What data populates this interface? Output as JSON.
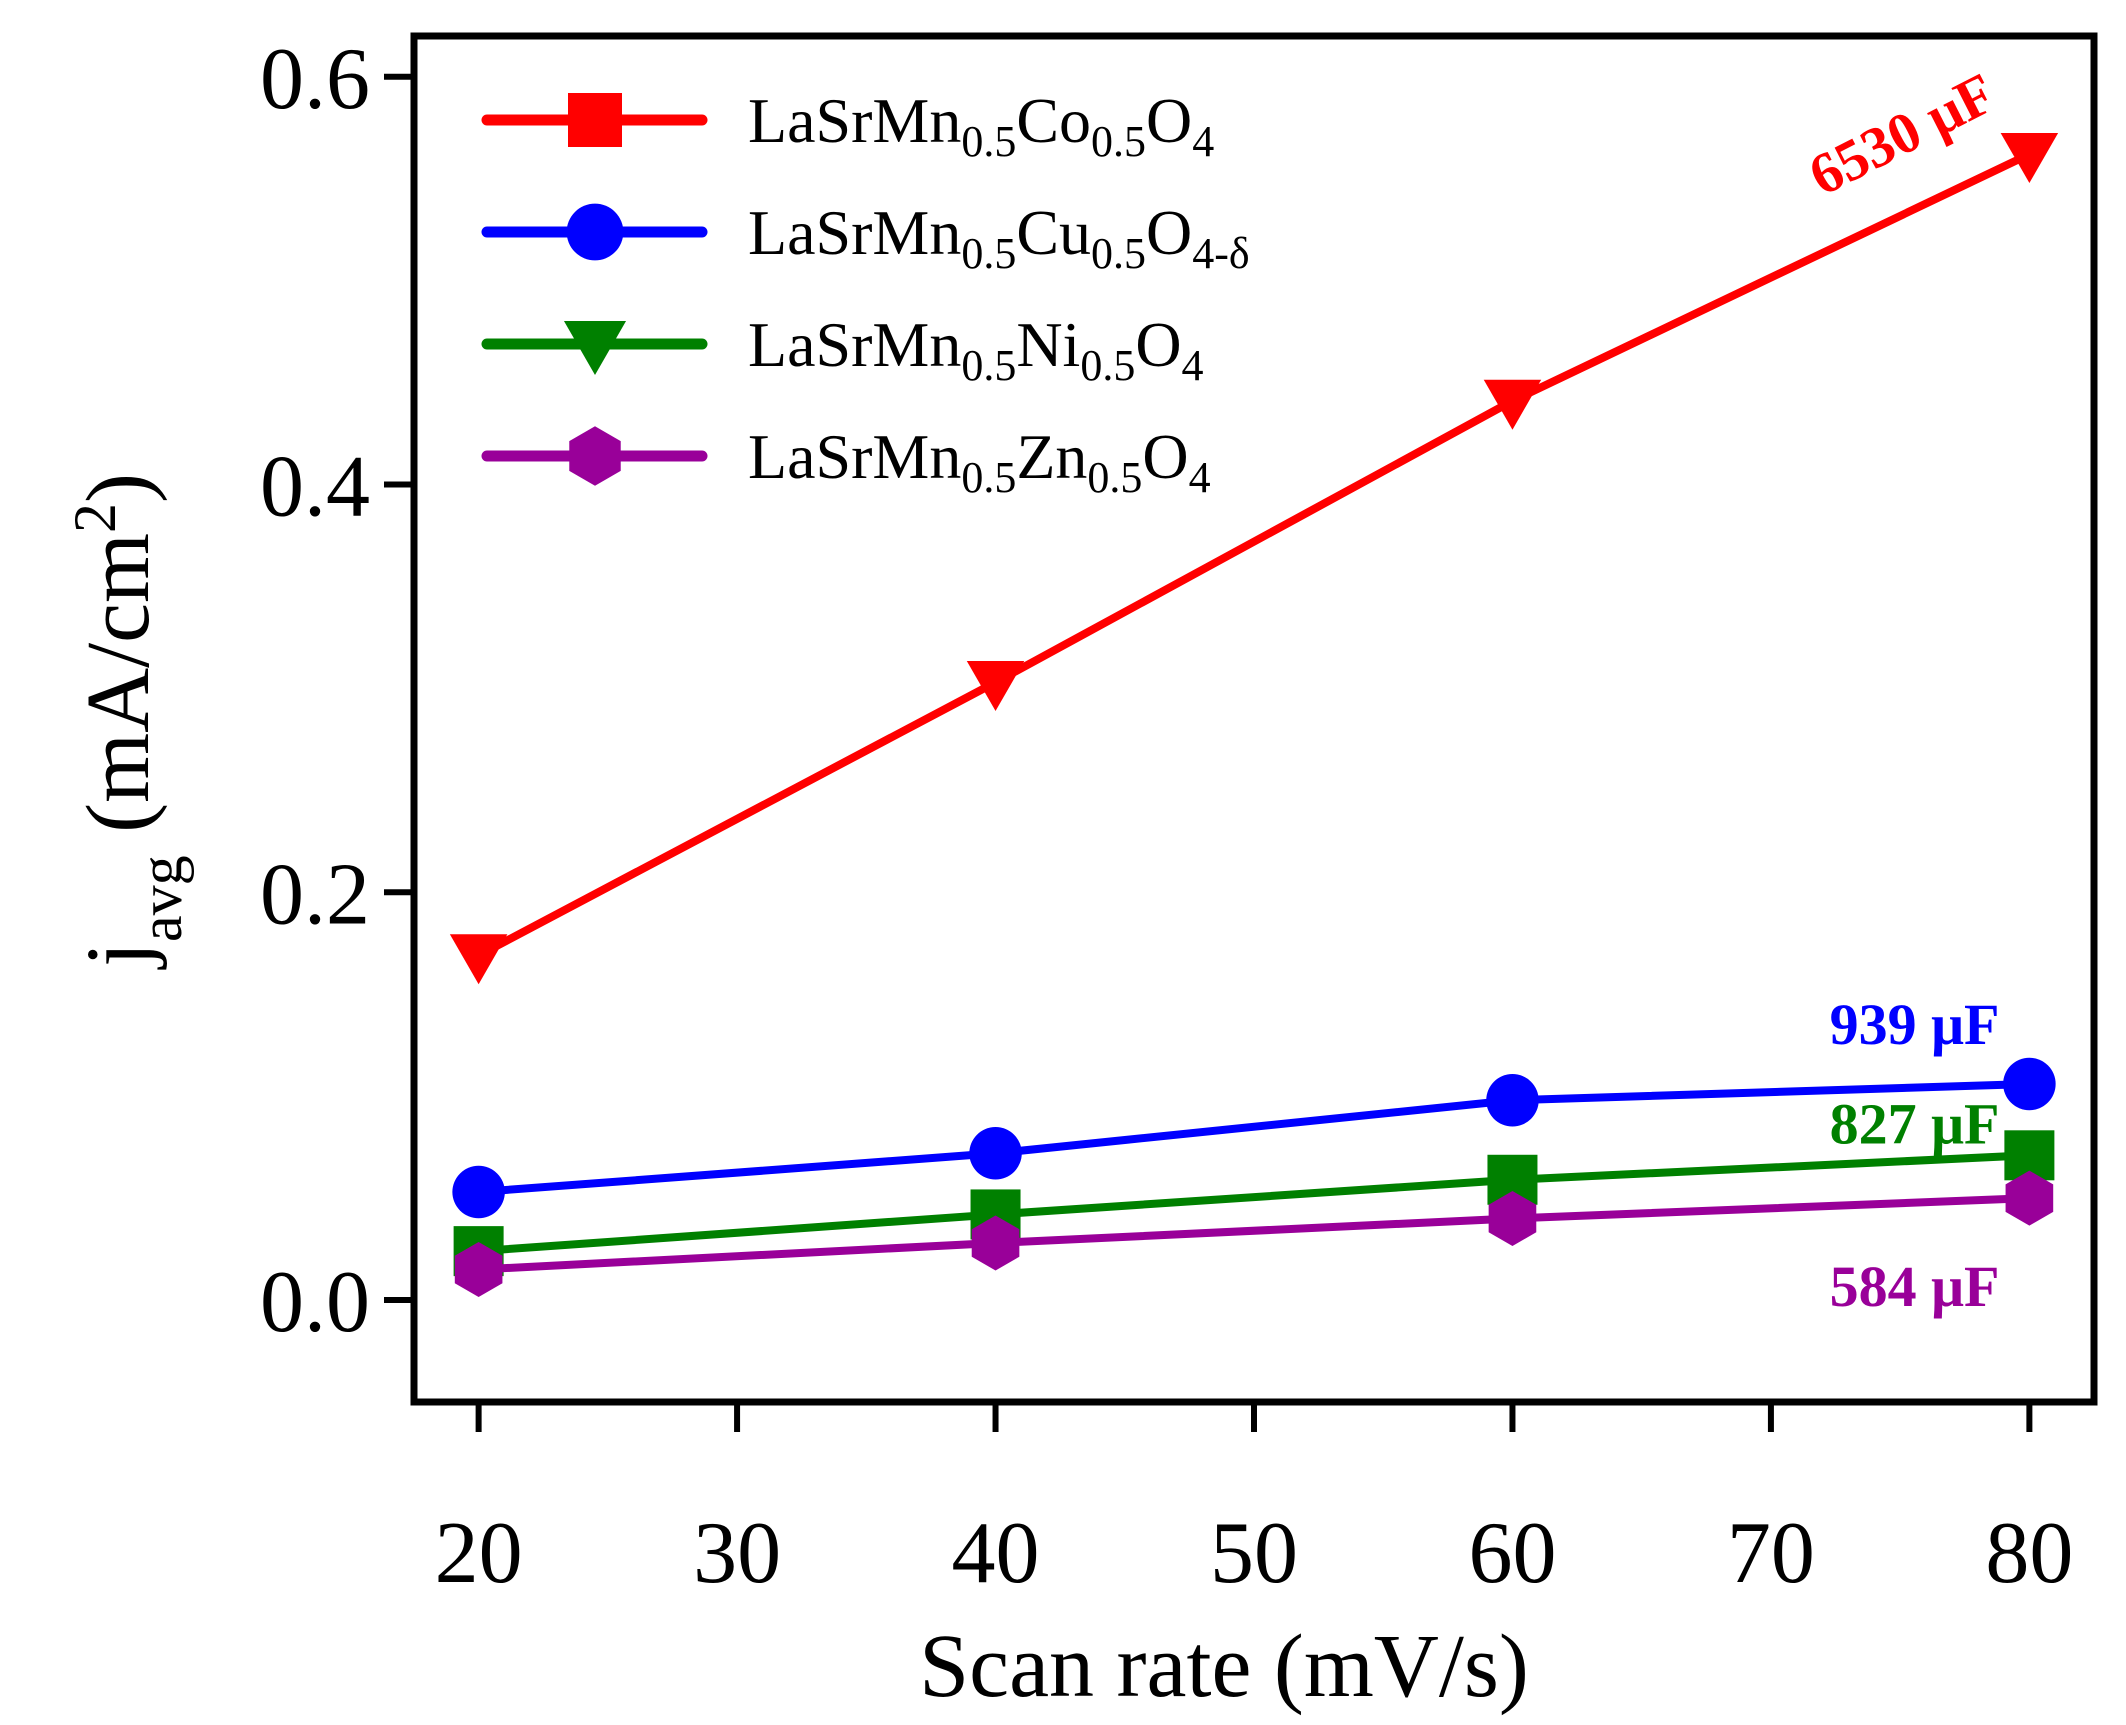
{
  "chart_data": {
    "type": "line",
    "title": "",
    "xlabel": "Scan rate (mV/s)",
    "ylabel": {
      "main": "j",
      "sub": "avg",
      "units": " (mA/cm",
      "sup": "2",
      "close": ")"
    },
    "xlim": [
      17.5,
      82.5
    ],
    "ylim": [
      -0.05,
      0.62
    ],
    "x_ticks": [
      20,
      30,
      40,
      50,
      60,
      70,
      80
    ],
    "y_ticks": [
      0.0,
      0.2,
      0.4,
      0.6
    ],
    "x_tick_labels": [
      "20",
      "30",
      "40",
      "50",
      "60",
      "70",
      "80"
    ],
    "y_tick_labels": [
      "0.0",
      "0.2",
      "0.4",
      "0.6"
    ],
    "grid": false,
    "legend_position": "top-left",
    "x": [
      20,
      40,
      60,
      80
    ],
    "series": [
      {
        "name": "LaSrMn0.5Co0.5O4",
        "legend_parts": [
          "LaSrMn",
          "0.5",
          "Co",
          "0.5",
          "O",
          "4"
        ],
        "legend_marker": "square",
        "plot_marker": "triangle-down",
        "color": "#ff0000",
        "values": [
          0.169,
          0.303,
          0.441,
          0.562
        ],
        "annotation": "6530 μF"
      },
      {
        "name": "LaSrMn0.5Cu0.5O4-δ",
        "legend_parts": [
          "LaSrMn",
          "0.5",
          "Cu",
          "0.5",
          "O",
          "4-δ"
        ],
        "legend_marker": "circle",
        "plot_marker": "circle",
        "color": "#0000ff",
        "values": [
          0.053,
          0.072,
          0.098,
          0.106
        ],
        "annotation": "939 μF"
      },
      {
        "name": "LaSrMn0.5Ni0.5O4",
        "legend_parts": [
          "LaSrMn",
          "0.5",
          "Ni",
          "0.5",
          "O",
          "4"
        ],
        "legend_marker": "triangle-down",
        "plot_marker": "square",
        "color": "#008000",
        "values": [
          0.024,
          0.042,
          0.059,
          0.071
        ],
        "annotation": "827 μF"
      },
      {
        "name": "LaSrMn0.5Zn0.5O4",
        "legend_parts": [
          "LaSrMn",
          "0.5",
          "Zn",
          "0.5",
          "O",
          "4"
        ],
        "legend_marker": "hexagon",
        "plot_marker": "hexagon",
        "color": "#990099",
        "values": [
          0.015,
          0.028,
          0.04,
          0.05
        ],
        "annotation": "584 μF"
      }
    ]
  }
}
